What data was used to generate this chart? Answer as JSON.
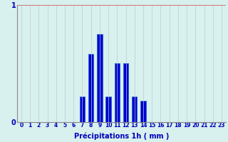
{
  "xlabel": "Précipitations 1h ( mm )",
  "bar_color": "#0000cc",
  "bar_edge_color": "#0055dd",
  "background_color": "#d8f0ee",
  "grid_color_x": "#b8cece",
  "grid_color_y": "#cc4444",
  "ylim": [
    0,
    1
  ],
  "yticks": [
    0,
    1
  ],
  "hours": [
    0,
    1,
    2,
    3,
    4,
    5,
    6,
    7,
    8,
    9,
    10,
    11,
    12,
    13,
    14,
    15,
    16,
    17,
    18,
    19,
    20,
    21,
    22,
    23
  ],
  "values": [
    0,
    0,
    0,
    0,
    0,
    0,
    0,
    0.22,
    0.58,
    0.75,
    0.22,
    0.5,
    0.5,
    0.22,
    0.18,
    0,
    0,
    0,
    0,
    0,
    0,
    0,
    0,
    0
  ],
  "xlabel_fontsize": 7,
  "tick_fontsize": 5.5,
  "ytick_fontsize": 7,
  "bar_width": 0.6
}
